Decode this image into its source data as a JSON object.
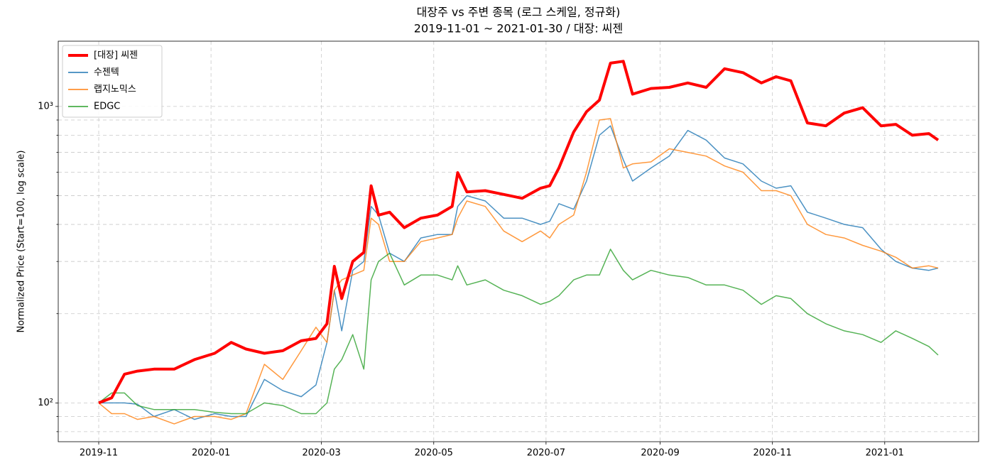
{
  "chart_data": {
    "type": "line",
    "title": "대장주 vs 주변 종목 (로그 스케일, 정규화)",
    "subtitle": "2019-11-01 ~ 2021-01-30 / 대장: 씨젠",
    "y_label": "Normalized Price (Start=100, log scale)",
    "log_scale": true,
    "grid": true,
    "legend": "upper left",
    "xlim": [
      "2019-10-10",
      "2021-02-21"
    ],
    "xticks": [
      {
        "value": "2019-11-01",
        "label": "2019-11"
      },
      {
        "value": "2020-01-01",
        "label": "2020-01"
      },
      {
        "value": "2020-03-01",
        "label": "2020-03"
      },
      {
        "value": "2020-05-01",
        "label": "2020-05"
      },
      {
        "value": "2020-07-01",
        "label": "2020-07"
      },
      {
        "value": "2020-09-01",
        "label": "2020-09"
      },
      {
        "value": "2020-11-01",
        "label": "2020-11"
      },
      {
        "value": "2021-01-01",
        "label": "2021-01"
      }
    ],
    "ylim": [
      74,
      1660
    ],
    "yticks": [
      {
        "value": 100,
        "label": "10²"
      },
      {
        "value": 1000,
        "label": "10³"
      }
    ],
    "yminorticks": [
      80,
      90,
      200,
      300,
      400,
      500,
      600,
      700,
      800,
      900
    ],
    "x": [
      "2019-11-01",
      "2019-11-08",
      "2019-11-15",
      "2019-11-22",
      "2019-12-01",
      "2019-12-12",
      "2019-12-23",
      "2020-01-03",
      "2020-01-12",
      "2020-01-20",
      "2020-01-30",
      "2020-02-09",
      "2020-02-19",
      "2020-02-27",
      "2020-03-04",
      "2020-03-08",
      "2020-03-12",
      "2020-03-18",
      "2020-03-24",
      "2020-03-28",
      "2020-04-01",
      "2020-04-07",
      "2020-04-15",
      "2020-04-24",
      "2020-05-03",
      "2020-05-11",
      "2020-05-14",
      "2020-05-19",
      "2020-05-29",
      "2020-06-08",
      "2020-06-18",
      "2020-06-28",
      "2020-07-03",
      "2020-07-08",
      "2020-07-16",
      "2020-07-23",
      "2020-07-30",
      "2020-08-05",
      "2020-08-12",
      "2020-08-17",
      "2020-08-27",
      "2020-09-06",
      "2020-09-16",
      "2020-09-26",
      "2020-10-06",
      "2020-10-16",
      "2020-10-26",
      "2020-11-03",
      "2020-11-11",
      "2020-11-20",
      "2020-11-30",
      "2020-12-10",
      "2020-12-20",
      "2020-12-30",
      "2021-01-07",
      "2021-01-16",
      "2021-01-25",
      "2021-01-30"
    ],
    "series": [
      {
        "name": "[대장] 씨젠",
        "color": "#ff0000",
        "width": 4,
        "values": [
          100,
          104,
          125,
          128,
          130,
          130,
          140,
          147,
          160,
          152,
          147,
          150,
          162,
          165,
          185,
          289,
          225,
          300,
          322,
          540,
          430,
          440,
          390,
          420,
          430,
          460,
          598,
          515,
          520,
          505,
          490,
          530,
          540,
          620,
          820,
          960,
          1050,
          1400,
          1420,
          1100,
          1150,
          1160,
          1200,
          1160,
          1340,
          1300,
          1200,
          1260,
          1220,
          880,
          860,
          950,
          990,
          860,
          870,
          800,
          810,
          770
        ]
      },
      {
        "name": "수젠텍",
        "color": "#1f77b4",
        "width": 1.5,
        "values": [
          100,
          100,
          100,
          99,
          90,
          95,
          88,
          92,
          90,
          90,
          120,
          110,
          105,
          115,
          160,
          240,
          175,
          280,
          300,
          460,
          430,
          320,
          300,
          360,
          370,
          370,
          460,
          500,
          480,
          420,
          420,
          400,
          410,
          470,
          450,
          560,
          800,
          860,
          660,
          560,
          620,
          680,
          830,
          770,
          670,
          640,
          560,
          530,
          540,
          440,
          420,
          400,
          390,
          330,
          300,
          285,
          280,
          285
        ]
      },
      {
        "name": "랩지노믹스",
        "color": "#ff7f0e",
        "width": 1.5,
        "values": [
          100,
          92,
          92,
          88,
          90,
          85,
          90,
          90,
          88,
          92,
          135,
          120,
          150,
          180,
          160,
          240,
          260,
          270,
          280,
          420,
          400,
          300,
          300,
          350,
          360,
          370,
          420,
          480,
          460,
          380,
          350,
          380,
          360,
          400,
          430,
          600,
          900,
          910,
          620,
          640,
          650,
          720,
          700,
          680,
          630,
          600,
          520,
          520,
          500,
          400,
          370,
          360,
          340,
          325,
          310,
          285,
          290,
          285
        ]
      },
      {
        "name": "EDGC",
        "color": "#2ca02c",
        "width": 1.5,
        "values": [
          100,
          108,
          108,
          98,
          95,
          95,
          95,
          93,
          92,
          92,
          100,
          98,
          92,
          92,
          100,
          130,
          140,
          170,
          130,
          260,
          300,
          320,
          250,
          270,
          270,
          260,
          290,
          250,
          260,
          240,
          230,
          215,
          220,
          230,
          260,
          270,
          270,
          330,
          280,
          260,
          280,
          270,
          265,
          250,
          250,
          240,
          215,
          230,
          225,
          200,
          185,
          175,
          170,
          160,
          175,
          165,
          155,
          145
        ]
      }
    ]
  }
}
